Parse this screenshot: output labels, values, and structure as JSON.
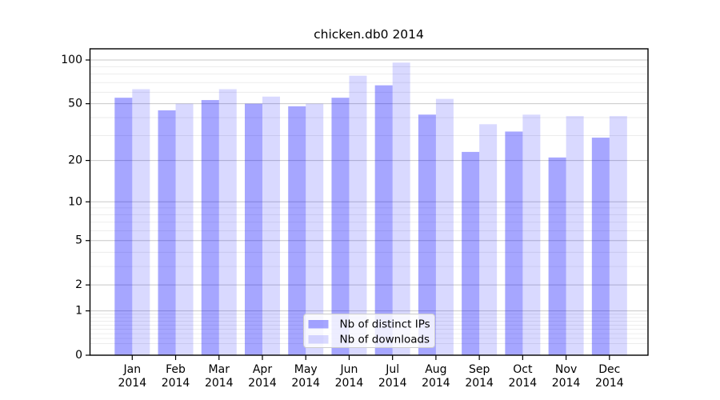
{
  "title": "chicken.db0 2014",
  "colors": {
    "distinct_ips": "rgba(0,0,255,0.35)",
    "downloads": "rgba(0,0,255,0.15)",
    "major_grid": "#c8c8c8",
    "minor_grid": "#e9e9e9",
    "spine": "#000000",
    "legend_border": "#cccccc",
    "legend_bg": "rgba(255,255,255,0.8)",
    "text": "#000000"
  },
  "y_axis": {
    "scale": "log10(1+v)",
    "tick_labels": [
      "0",
      "1",
      "2",
      "5",
      "10",
      "20",
      "50",
      "100"
    ],
    "tick_values": [
      0,
      1,
      2,
      5,
      10,
      20,
      50,
      100
    ],
    "minor_values": [
      0.2,
      0.3,
      0.4,
      0.5,
      0.6,
      0.7,
      0.8,
      0.9,
      3,
      4,
      6,
      7,
      8,
      9,
      30,
      40,
      60,
      70,
      80,
      90
    ]
  },
  "x_axis": {
    "months": [
      "Jan",
      "Feb",
      "Mar",
      "Apr",
      "May",
      "Jun",
      "Jul",
      "Aug",
      "Sep",
      "Oct",
      "Nov",
      "Dec"
    ],
    "year": "2014"
  },
  "legend": {
    "items": [
      {
        "label": "Nb of distinct IPs",
        "color_key": "distinct_ips"
      },
      {
        "label": "Nb of downloads",
        "color_key": "downloads"
      }
    ]
  },
  "chart_data": {
    "type": "bar",
    "title": "chicken.db0 2014",
    "categories": [
      "Jan 2014",
      "Feb 2014",
      "Mar 2014",
      "Apr 2014",
      "May 2014",
      "Jun 2014",
      "Jul 2014",
      "Aug 2014",
      "Sep 2014",
      "Oct 2014",
      "Nov 2014",
      "Dec 2014"
    ],
    "series": [
      {
        "name": "Nb of distinct IPs",
        "values": [
          55,
          45,
          53,
          50,
          48,
          55,
          67,
          42,
          23,
          32,
          21,
          29
        ]
      },
      {
        "name": "Nb of downloads",
        "values": [
          63,
          50,
          63,
          56,
          50,
          78,
          96,
          54,
          36,
          42,
          41,
          41
        ]
      }
    ],
    "yscale": "log1p",
    "ylim": [
      0,
      119
    ],
    "ytick_values": [
      0,
      1,
      2,
      5,
      10,
      20,
      50,
      100
    ],
    "grid": true,
    "legend_position": "lower-center-inside"
  }
}
